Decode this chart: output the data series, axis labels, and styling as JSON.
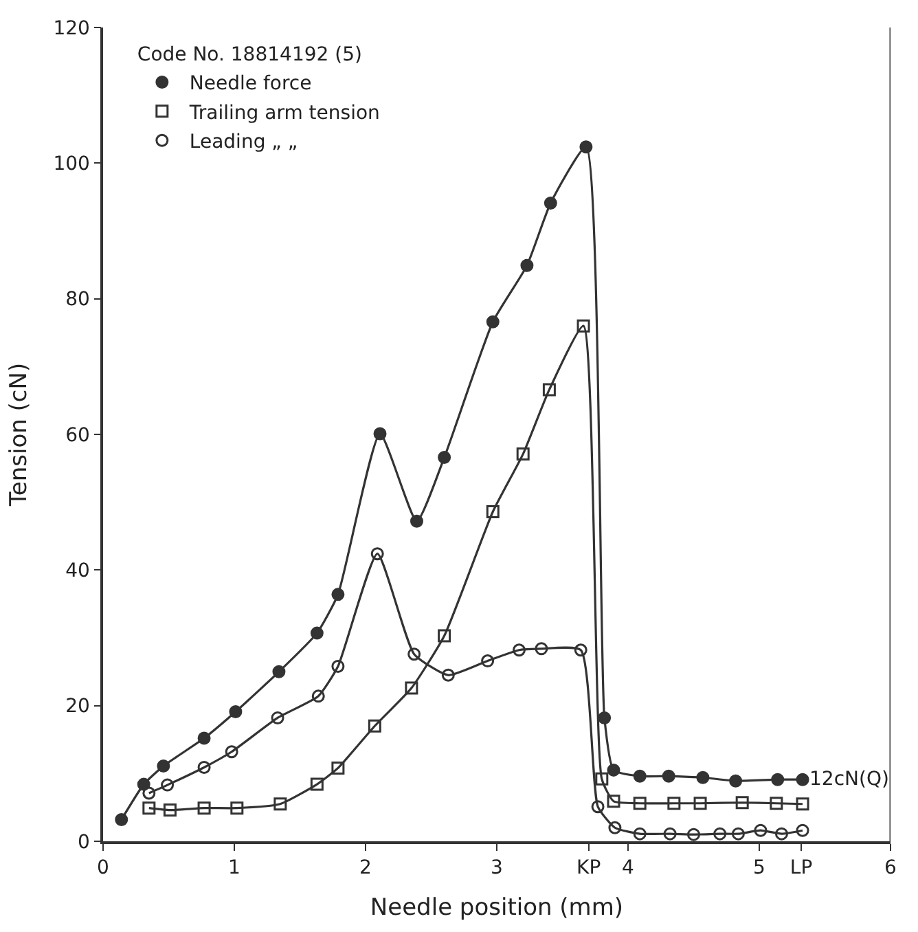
{
  "chart_data": {
    "type": "line",
    "xlabel": "Needle position (mm)",
    "ylabel": "Tension (cN)",
    "xlim": [
      0,
      6
    ],
    "ylim": [
      0,
      120
    ],
    "xticks": [
      0,
      1,
      2,
      3,
      {
        "value": 3.7,
        "label": "KP"
      },
      4,
      5,
      {
        "value": 5.32,
        "label": "LP"
      },
      6
    ],
    "yticks": [
      0,
      20,
      40,
      60,
      80,
      100,
      120
    ],
    "legend": "top left",
    "legend_title": "Code No. 18814192 (5)",
    "line_style": "solid",
    "ref_lines": [
      {
        "axis": "x",
        "value": 6,
        "color": "#333333"
      }
    ],
    "annotations": [
      {
        "text": "12cN(Q)",
        "x": 5.32,
        "y": 9.1
      }
    ],
    "series": [
      {
        "name": "Needle force",
        "color": "#333333",
        "marker": "circle",
        "x": [
          0.14,
          0.31,
          0.46,
          0.77,
          1.01,
          1.34,
          1.63,
          1.79,
          2.11,
          2.39,
          2.6,
          2.97,
          3.23,
          3.41,
          3.68,
          3.82,
          3.89,
          4.09,
          4.31,
          4.57,
          4.82,
          5.14,
          5.33
        ],
        "values": [
          3.2,
          8.4,
          11.1,
          15.2,
          19.1,
          25.0,
          30.7,
          36.4,
          60.1,
          47.2,
          56.6,
          76.6,
          84.9,
          94.1,
          102.4,
          18.2,
          10.5,
          9.6,
          9.6,
          9.4,
          8.9,
          9.1,
          9.1
        ]
      },
      {
        "name": "Trailing arm tension",
        "color": "#333333",
        "marker": "square",
        "x": [
          0.35,
          0.51,
          0.77,
          1.02,
          1.35,
          1.63,
          1.79,
          2.07,
          2.35,
          2.6,
          2.97,
          3.2,
          3.4,
          3.66,
          3.8,
          3.89,
          4.09,
          4.35,
          4.55,
          4.87,
          5.13,
          5.33
        ],
        "values": [
          4.9,
          4.6,
          4.9,
          4.9,
          5.5,
          8.4,
          10.8,
          17.0,
          22.6,
          30.3,
          48.6,
          57.1,
          66.6,
          76.0,
          9.2,
          5.9,
          5.6,
          5.6,
          5.6,
          5.7,
          5.6,
          5.5
        ]
      },
      {
        "name": "Leading „ „",
        "color": "#333333",
        "marker": "circle",
        "x": [
          0.35,
          0.49,
          0.77,
          0.98,
          1.33,
          1.64,
          1.79,
          2.09,
          2.37,
          2.63,
          2.93,
          3.17,
          3.34,
          3.64,
          3.77,
          3.9,
          4.09,
          4.32,
          4.5,
          4.7,
          4.84,
          5.01,
          5.17,
          5.33
        ],
        "values": [
          7.1,
          8.3,
          10.9,
          13.2,
          18.2,
          21.4,
          25.8,
          42.4,
          27.6,
          24.5,
          26.6,
          28.2,
          28.4,
          28.2,
          5.1,
          2.0,
          1.1,
          1.1,
          1.0,
          1.1,
          1.1,
          1.6,
          1.1,
          1.6
        ]
      }
    ]
  }
}
